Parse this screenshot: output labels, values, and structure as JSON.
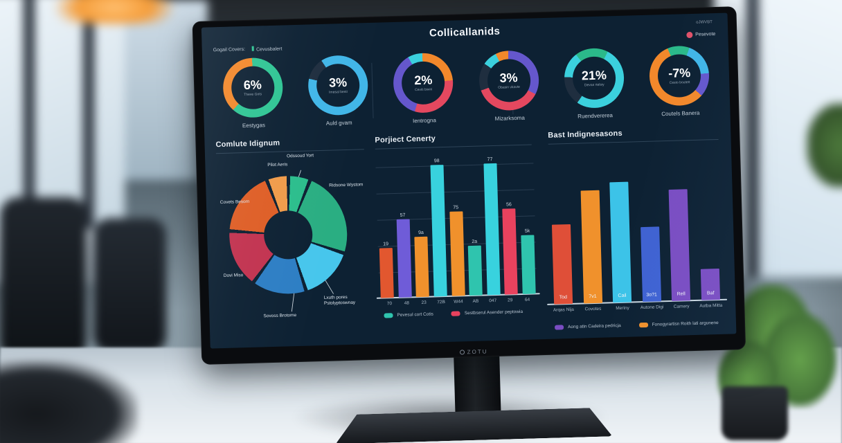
{
  "photo": {
    "brand_logo_text": "ZOTU"
  },
  "dashboard": {
    "title": "Collicallanids",
    "header_left": {
      "label": "Gogail Covers:",
      "tag": "Cevusbalert"
    },
    "header_right": {
      "small_text": "oJWVBT",
      "legend_label": "Pesevote",
      "legend_color": "#e0526a"
    }
  },
  "colors": {
    "screen_bg": "#0d2133",
    "teal": "#2fc594",
    "orange": "#f2882b",
    "blue": "#41b6e8",
    "navy": "#1f2e3f",
    "cyan": "#3bd0dd",
    "purple": "#6557cc",
    "red": "#e4485f",
    "green": "#2bb98a"
  },
  "chart_data": [
    {
      "id": "kpi-donuts",
      "type": "donut",
      "items": [
        {
          "value": "6%",
          "sublabel": "Theve Gots",
          "label": "Eestygas",
          "segments": [
            [
              "#2fc594",
              62
            ],
            [
              "#f2882b",
              38
            ]
          ]
        },
        {
          "value": "3%",
          "sublabel": "Imesal besti",
          "label": "Auld gvam",
          "segments": [
            [
              "#41b6e8",
              79
            ],
            [
              "#1f2e3f",
              12
            ],
            [
              "#41b6e8",
              9
            ]
          ]
        },
        {
          "value": "2%",
          "sublabel": "Ceviti biwiri",
          "label": "Ientrogna",
          "segments": [
            [
              "#f2882b",
              24
            ],
            [
              "#e4485f",
              31
            ],
            [
              "#6557cc",
              37
            ],
            [
              "#3bd0dd",
              8
            ]
          ]
        },
        {
          "value": "3%",
          "sublabel": "Obasin vkavte",
          "label": "Mizarksoma",
          "segments": [
            [
              "#6557cc",
              33
            ],
            [
              "#e4485f",
              37
            ],
            [
              "#1f2e3f",
              15
            ],
            [
              "#3bd0dd",
              8
            ],
            [
              "#f2882b",
              7
            ]
          ]
        },
        {
          "value": "21%",
          "sublabel": "Devas rtelsiy",
          "label": "Ruendvererea",
          "segments": [
            [
              "#2bb98a",
              8
            ],
            [
              "#3bd0dd",
              52
            ],
            [
              "#1f2e3f",
              16
            ],
            [
              "#3bd0dd",
              14
            ],
            [
              "#2bb98a",
              10
            ]
          ]
        },
        {
          "value": "-7%",
          "sublabel": "Cesto boutett",
          "label": "Coutels Banera",
          "segments": [
            [
              "#2bb98a",
              6
            ],
            [
              "#41b6e8",
              18
            ],
            [
              "#6557cc",
              13
            ],
            [
              "#f2882b",
              57
            ],
            [
              "#2bb98a",
              6
            ]
          ]
        }
      ]
    },
    {
      "id": "category-pie",
      "type": "pie",
      "title": "Comlute Idignum",
      "segments": [
        {
          "label": "Odssoud Yort",
          "color": "#2bbd8c",
          "pct": 6
        },
        {
          "label": "Ridsone Wystom",
          "color": "#2aae82",
          "pct": 24
        },
        {
          "label": "Lxuth pores Pstolyptoswnay",
          "color": "#47c6ec",
          "pct": 15
        },
        {
          "label": "Sovoss Brotome",
          "color": "#2d7ec4",
          "pct": 15
        },
        {
          "label": "Dovi Miso",
          "color": "#c23350",
          "pct": 16
        },
        {
          "label": "Covets Besom",
          "color": "#de5e26",
          "pct": 18
        },
        {
          "label": "Pilot Aeris",
          "color": "#f09b4a",
          "pct": 6
        }
      ]
    },
    {
      "id": "middle-bars",
      "type": "bar",
      "title": "Porjiect Cenerty",
      "categories": [
        "70",
        "48",
        "23",
        "72B",
        "W44",
        "AB",
        "047",
        "29",
        "64"
      ],
      "values": [
        37,
        58,
        45,
        98,
        63,
        37,
        98,
        64,
        44
      ],
      "bar_labels": [
        "19",
        "57",
        "9a",
        "98",
        "75",
        "2a",
        "77",
        "56",
        "5k"
      ],
      "colors": [
        "#e2572f",
        "#6f5cd8",
        "#f0912c",
        "#38d2de",
        "#f0912c",
        "#2fc4ae",
        "#38d2de",
        "#e8425e",
        "#2fc4ae"
      ],
      "ylim": [
        0,
        100
      ],
      "grid": true,
      "legend_position": "bottom",
      "legend": [
        {
          "label": "Pevesul cort Cotis",
          "color": "#2fc4ae"
        },
        {
          "label": "Sestbserul Asender peptowia",
          "color": "#e8425e"
        }
      ]
    },
    {
      "id": "right-bars",
      "type": "bar",
      "title": "Bast Indignesasons",
      "categories": [
        "Arqas Nija",
        "Covotes",
        "Meriny",
        "Autone Digi",
        "Camery",
        "Autba Mitta"
      ],
      "values": [
        61,
        86,
        92,
        57,
        85,
        24
      ],
      "bar_labels": [
        "Tod",
        "7v1",
        "Cail",
        "3o?1",
        "Rell",
        "Baf"
      ],
      "colors": [
        "#df4f38",
        "#f0912c",
        "#3cc3e8",
        "#3f62d2",
        "#7a4dc2",
        "#7a4dc2"
      ],
      "ylim": [
        0,
        100
      ],
      "grid": false,
      "legend_position": "bottom",
      "legend": [
        {
          "label": "Aong atin Cadeira pedricja",
          "color": "#7a4dc2"
        },
        {
          "label": "Fonogyrartisn Roith lati argunene",
          "color": "#f0912c"
        }
      ]
    }
  ]
}
